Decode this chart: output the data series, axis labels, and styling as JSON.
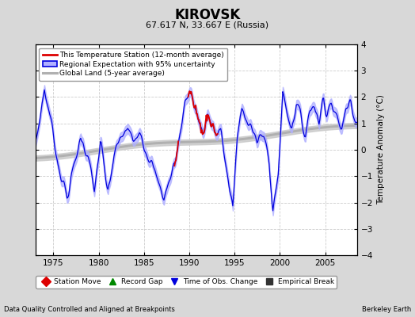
{
  "title": "KIROVSK",
  "subtitle": "67.617 N, 33.667 E (Russia)",
  "ylabel": "Temperature Anomaly (°C)",
  "xlabel_bottom_left": "Data Quality Controlled and Aligned at Breakpoints",
  "xlabel_bottom_right": "Berkeley Earth",
  "ylim": [
    -4,
    4
  ],
  "xlim": [
    1973.0,
    2008.5
  ],
  "xticks": [
    1975,
    1980,
    1985,
    1990,
    1995,
    2000,
    2005
  ],
  "yticks": [
    -4,
    -3,
    -2,
    -1,
    0,
    1,
    2,
    3,
    4
  ],
  "bg_color": "#d8d8d8",
  "plot_bg_color": "#ffffff",
  "blue_line_color": "#0000dd",
  "red_line_color": "#dd0000",
  "gray_line_color": "#b0b0b0",
  "fill_blue_color": "#b0b0ff",
  "fill_gray_color": "#c8c8c8",
  "legend1_label": "This Temperature Station (12-month average)",
  "legend2_label": "Regional Expectation with 95% uncertainty",
  "legend3_label": "Global Land (5-year average)",
  "marker_labels": [
    "Station Move",
    "Record Gap",
    "Time of Obs. Change",
    "Empirical Break"
  ],
  "marker_colors": [
    "#dd0000",
    "#008800",
    "#0000dd",
    "#333333"
  ]
}
